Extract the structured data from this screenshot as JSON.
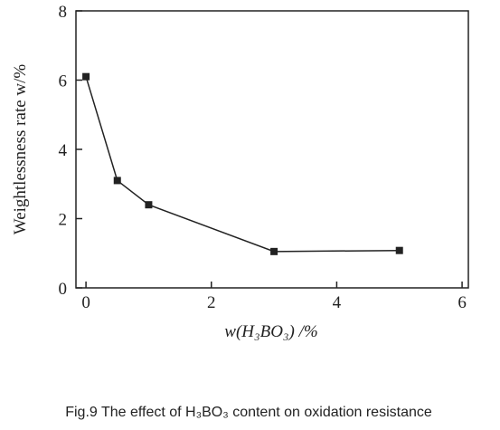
{
  "chart_data": {
    "type": "line",
    "caption": "Fig.9 The effect of H₃BO₃ content on oxidation resistance",
    "x_label": "w(H₃BO₃) /%",
    "y_label": "Weightlessness rate  w/%",
    "x": [
      0,
      0.5,
      1,
      3,
      5
    ],
    "values": [
      6.1,
      3.1,
      2.4,
      1.05,
      1.08
    ],
    "color": "#222222",
    "xlim": [
      -0.16,
      6.1
    ],
    "xticks": [
      0,
      2,
      4,
      6
    ],
    "ylim": [
      0,
      8
    ],
    "yticks": [
      0,
      2,
      4,
      6,
      8
    ]
  }
}
